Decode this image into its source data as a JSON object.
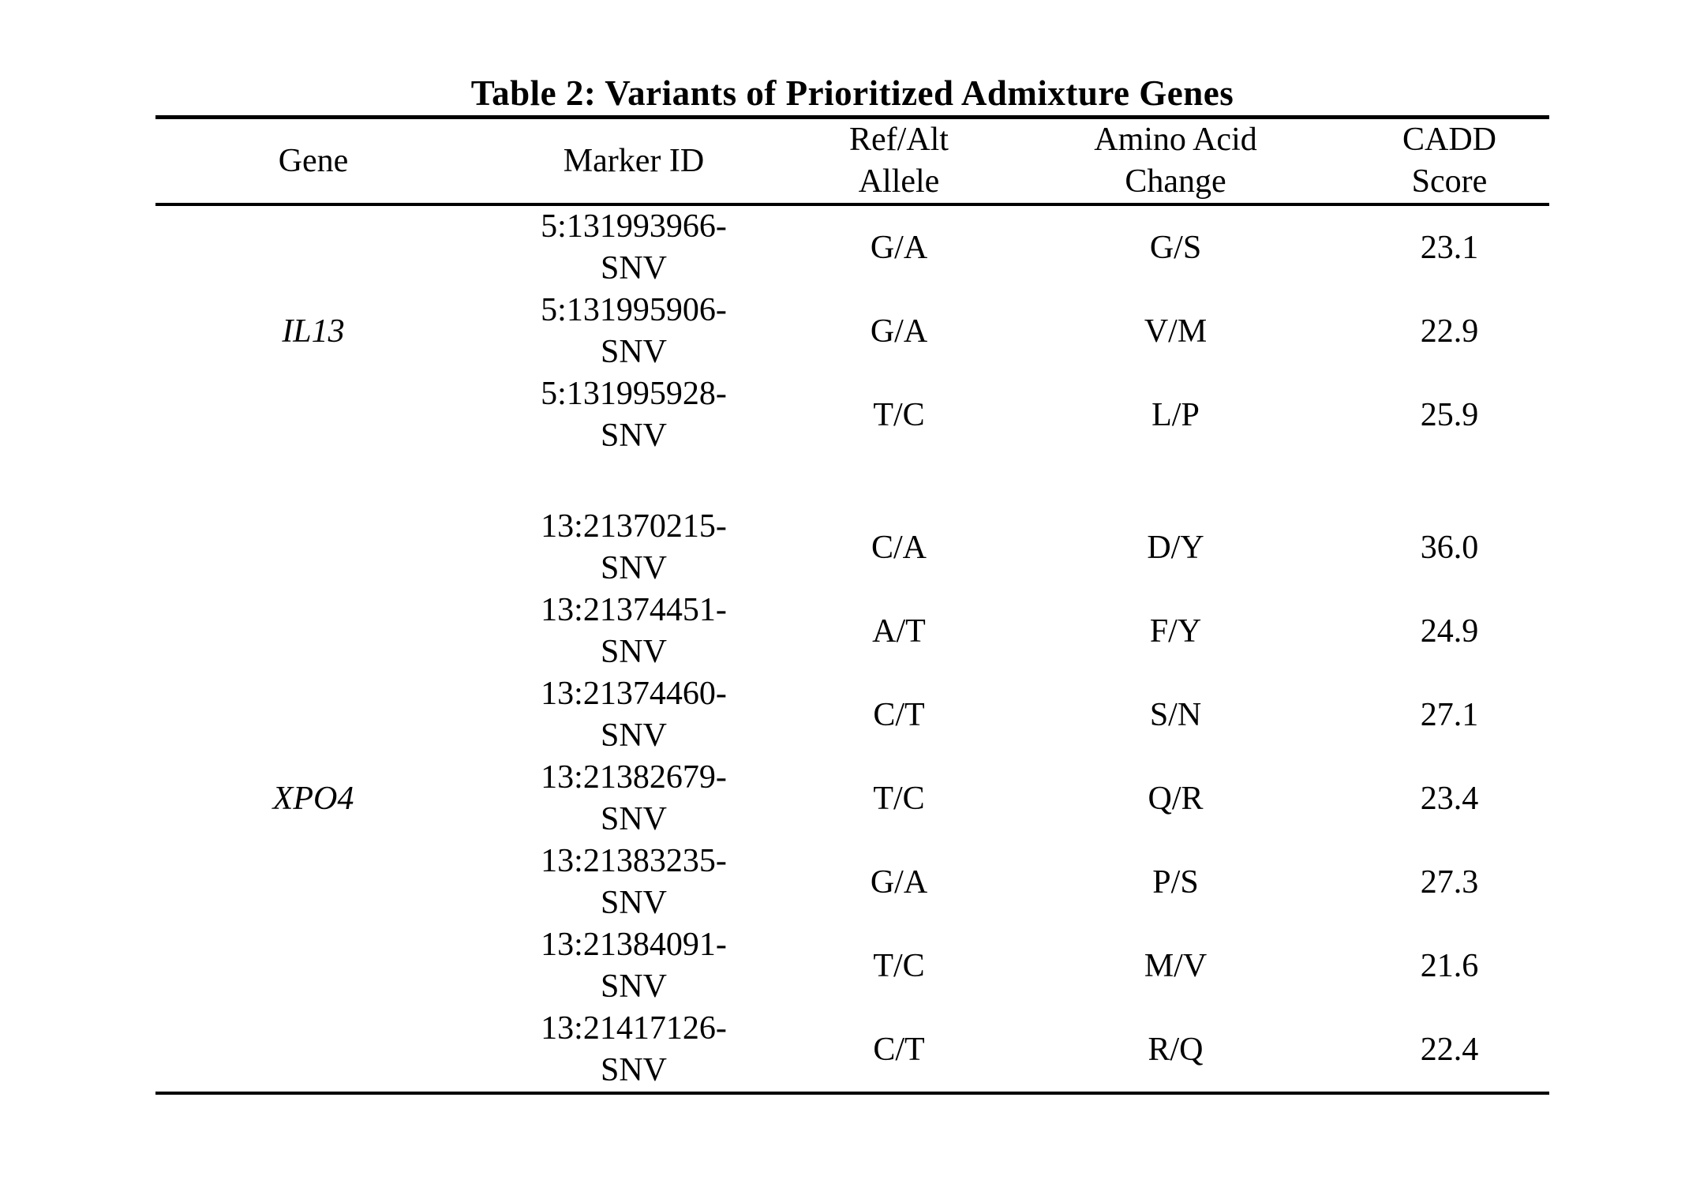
{
  "table": {
    "title": "Table 2: Variants of Prioritized Admixture Genes",
    "columns": [
      "Gene",
      "Marker ID",
      "Ref/Alt Allele",
      "Amino Acid Change",
      "CADD Score"
    ],
    "groups": [
      {
        "gene": "IL13",
        "variants": [
          {
            "marker_id": "5:131993966-SNV",
            "ref_alt": "G/A",
            "amino_acid_change": "G/S",
            "cadd_score": "23.1"
          },
          {
            "marker_id": "5:131995906-SNV",
            "ref_alt": "G/A",
            "amino_acid_change": "V/M",
            "cadd_score": "22.9"
          },
          {
            "marker_id": "5:131995928-SNV",
            "ref_alt": "T/C",
            "amino_acid_change": "L/P",
            "cadd_score": "25.9"
          }
        ]
      },
      {
        "gene": "XPO4",
        "variants": [
          {
            "marker_id": "13:21370215-SNV",
            "ref_alt": "C/A",
            "amino_acid_change": "D/Y",
            "cadd_score": "36.0"
          },
          {
            "marker_id": "13:21374451-SNV",
            "ref_alt": "A/T",
            "amino_acid_change": "F/Y",
            "cadd_score": "24.9"
          },
          {
            "marker_id": "13:21374460-SNV",
            "ref_alt": "C/T",
            "amino_acid_change": "S/N",
            "cadd_score": "27.1"
          },
          {
            "marker_id": "13:21382679-SNV",
            "ref_alt": "T/C",
            "amino_acid_change": "Q/R",
            "cadd_score": "23.4"
          },
          {
            "marker_id": "13:21383235-SNV",
            "ref_alt": "G/A",
            "amino_acid_change": "P/S",
            "cadd_score": "27.3"
          },
          {
            "marker_id": "13:21384091-SNV",
            "ref_alt": "T/C",
            "amino_acid_change": "M/V",
            "cadd_score": "21.6"
          },
          {
            "marker_id": "13:21417126-SNV",
            "ref_alt": "C/T",
            "amino_acid_change": "R/Q",
            "cadd_score": "22.4"
          }
        ]
      }
    ]
  }
}
